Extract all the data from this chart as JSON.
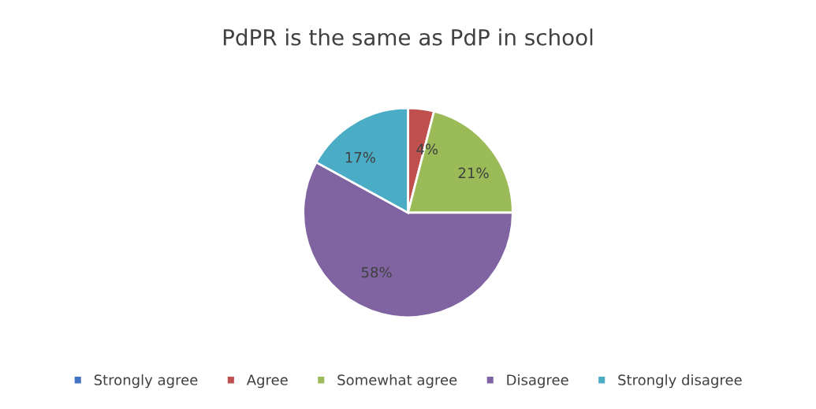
{
  "chart_data": {
    "type": "pie",
    "title": "PdPR is the same as PdP in school",
    "categories": [
      "Strongly agree",
      "Agree",
      "Somewhat agree",
      "Disagree",
      "Strongly disagree"
    ],
    "values": [
      0,
      4,
      21,
      58,
      17
    ],
    "value_labels": [
      null,
      "4%",
      "21%",
      "58%",
      "17%"
    ],
    "colors": [
      "#4472c4",
      "#c0504d",
      "#9bbb59",
      "#8064a2",
      "#4bacc6"
    ],
    "legend": "bottom"
  }
}
